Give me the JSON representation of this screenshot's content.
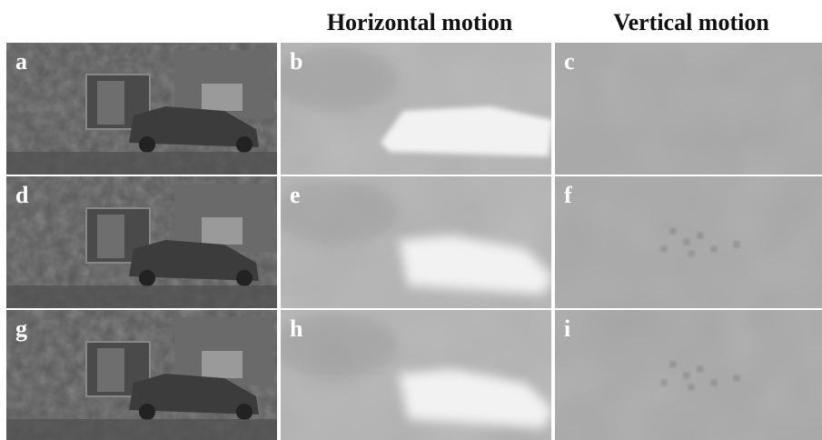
{
  "headers": [
    "Horizontal motion",
    "Vertical motion"
  ],
  "panels": [
    [
      "a",
      "b",
      "c"
    ],
    [
      "d",
      "e",
      "f"
    ],
    [
      "g",
      "h",
      "i"
    ]
  ]
}
